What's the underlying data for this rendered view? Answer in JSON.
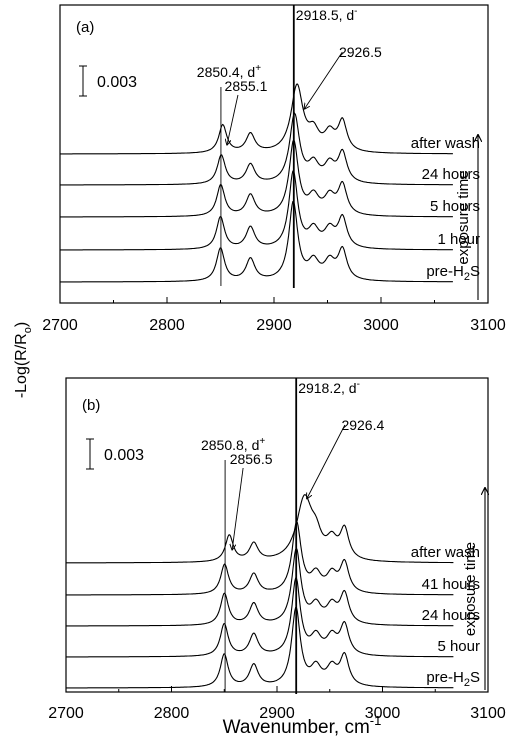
{
  "figure": {
    "ylabel": "-Log(R/R",
    "ylabel_sub": "o",
    "ylabel_tail": ")",
    "xlabel_main": "Wavenumber, cm",
    "xlabel_sup": "-1",
    "arrow_label": "exposure time",
    "scale_label": "0.003"
  },
  "chart_data": [
    {
      "type": "line",
      "panel": "(a)",
      "xlim": [
        2700,
        3100
      ],
      "xticks": [
        2700,
        2800,
        2900,
        3000,
        3100
      ],
      "yunit": "-Log(R/Ro)",
      "scale_bar": 0.003,
      "series": [
        {
          "name": "pre-H2S",
          "label_main": "pre-H",
          "label_sub": "2",
          "label_tail": "S",
          "offset": 0.0,
          "shift": 0,
          "scale": 1.0
        },
        {
          "name": "1 hour",
          "label_main": "1 hour",
          "offset": 0.0032,
          "shift": 0,
          "scale": 0.98
        },
        {
          "name": "5 hours",
          "label_main": "5 hours",
          "offset": 0.0065,
          "shift": 0.4,
          "scale": 0.95
        },
        {
          "name": "24 hours",
          "label_main": "24 hours",
          "offset": 0.0097,
          "shift": 1.2,
          "scale": 0.88
        },
        {
          "name": "after wash",
          "label_main": "after wash",
          "offset": 0.0128,
          "shift": 3.5,
          "scale": 0.85
        }
      ],
      "peaks": [
        {
          "x": 2850.4,
          "label": "2850.4, d",
          "sup": "+"
        },
        {
          "x": 2855.1,
          "label": "2855.1",
          "sup": ""
        },
        {
          "x": 2918.5,
          "label": "2918.5, d",
          "sup": "-"
        },
        {
          "x": 2926.5,
          "label": "2926.5",
          "sup": ""
        }
      ]
    },
    {
      "type": "line",
      "panel": "(b)",
      "xlim": [
        2700,
        3100
      ],
      "xticks": [
        2700,
        2800,
        2900,
        3000,
        3100
      ],
      "yunit": "-Log(R/Ro)",
      "scale_bar": 0.003,
      "series": [
        {
          "name": "pre-H2S",
          "label_main": "pre-H",
          "label_sub": "2",
          "label_tail": "S",
          "offset": 0.0,
          "shift": 0,
          "scale": 1.0
        },
        {
          "name": "5 hour",
          "label_main": "5 hour",
          "offset": 0.0031,
          "shift": 0,
          "scale": 0.98
        },
        {
          "name": "24 hours",
          "label_main": "24 hours",
          "offset": 0.0062,
          "shift": 0.3,
          "scale": 0.96
        },
        {
          "name": "41 hours",
          "label_main": "41 hours",
          "offset": 0.0093,
          "shift": 0.6,
          "scale": 0.9
        },
        {
          "name": "after wash",
          "label_main": "after wash",
          "offset": 0.0125,
          "shift": 8,
          "scale": 0.8
        }
      ],
      "peaks": [
        {
          "x": 2850.8,
          "label": "2850.8, d",
          "sup": "+"
        },
        {
          "x": 2856.5,
          "label": "2856.5",
          "sup": ""
        },
        {
          "x": 2918.2,
          "label": "2918.2, d",
          "sup": "-"
        },
        {
          "x": 2926.4,
          "label": "2926.4",
          "sup": ""
        }
      ]
    }
  ]
}
